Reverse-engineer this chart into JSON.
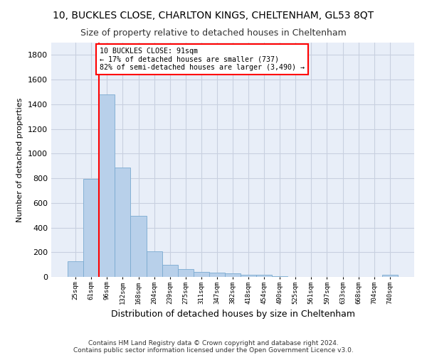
{
  "title_line1": "10, BUCKLES CLOSE, CHARLTON KINGS, CHELTENHAM, GL53 8QT",
  "title_line2": "Size of property relative to detached houses in Cheltenham",
  "xlabel": "Distribution of detached houses by size in Cheltenham",
  "ylabel": "Number of detached properties",
  "footnote1": "Contains HM Land Registry data © Crown copyright and database right 2024.",
  "footnote2": "Contains public sector information licensed under the Open Government Licence v3.0.",
  "bar_labels": [
    "25sqm",
    "61sqm",
    "96sqm",
    "132sqm",
    "168sqm",
    "204sqm",
    "239sqm",
    "275sqm",
    "311sqm",
    "347sqm",
    "382sqm",
    "418sqm",
    "454sqm",
    "490sqm",
    "525sqm",
    "561sqm",
    "597sqm",
    "633sqm",
    "668sqm",
    "704sqm",
    "740sqm"
  ],
  "bar_values": [
    125,
    795,
    1480,
    885,
    495,
    205,
    100,
    65,
    40,
    35,
    30,
    20,
    20,
    5,
    0,
    0,
    0,
    0,
    0,
    0,
    15
  ],
  "bar_color": "#b8d0ea",
  "bar_edge_color": "#7aaad0",
  "vline_x": 1.5,
  "vline_color": "red",
  "annotation_text": "10 BUCKLES CLOSE: 91sqm\n← 17% of detached houses are smaller (737)\n82% of semi-detached houses are larger (3,490) →",
  "annotation_box_color": "white",
  "annotation_box_edge_color": "red",
  "ylim": [
    0,
    1900
  ],
  "yticks": [
    0,
    200,
    400,
    600,
    800,
    1000,
    1200,
    1400,
    1600,
    1800
  ],
  "background_color": "#e8eef8",
  "grid_color": "#c8d0e0",
  "title1_fontsize": 10,
  "title2_fontsize": 9,
  "ylabel_fontsize": 8,
  "xlabel_fontsize": 9
}
